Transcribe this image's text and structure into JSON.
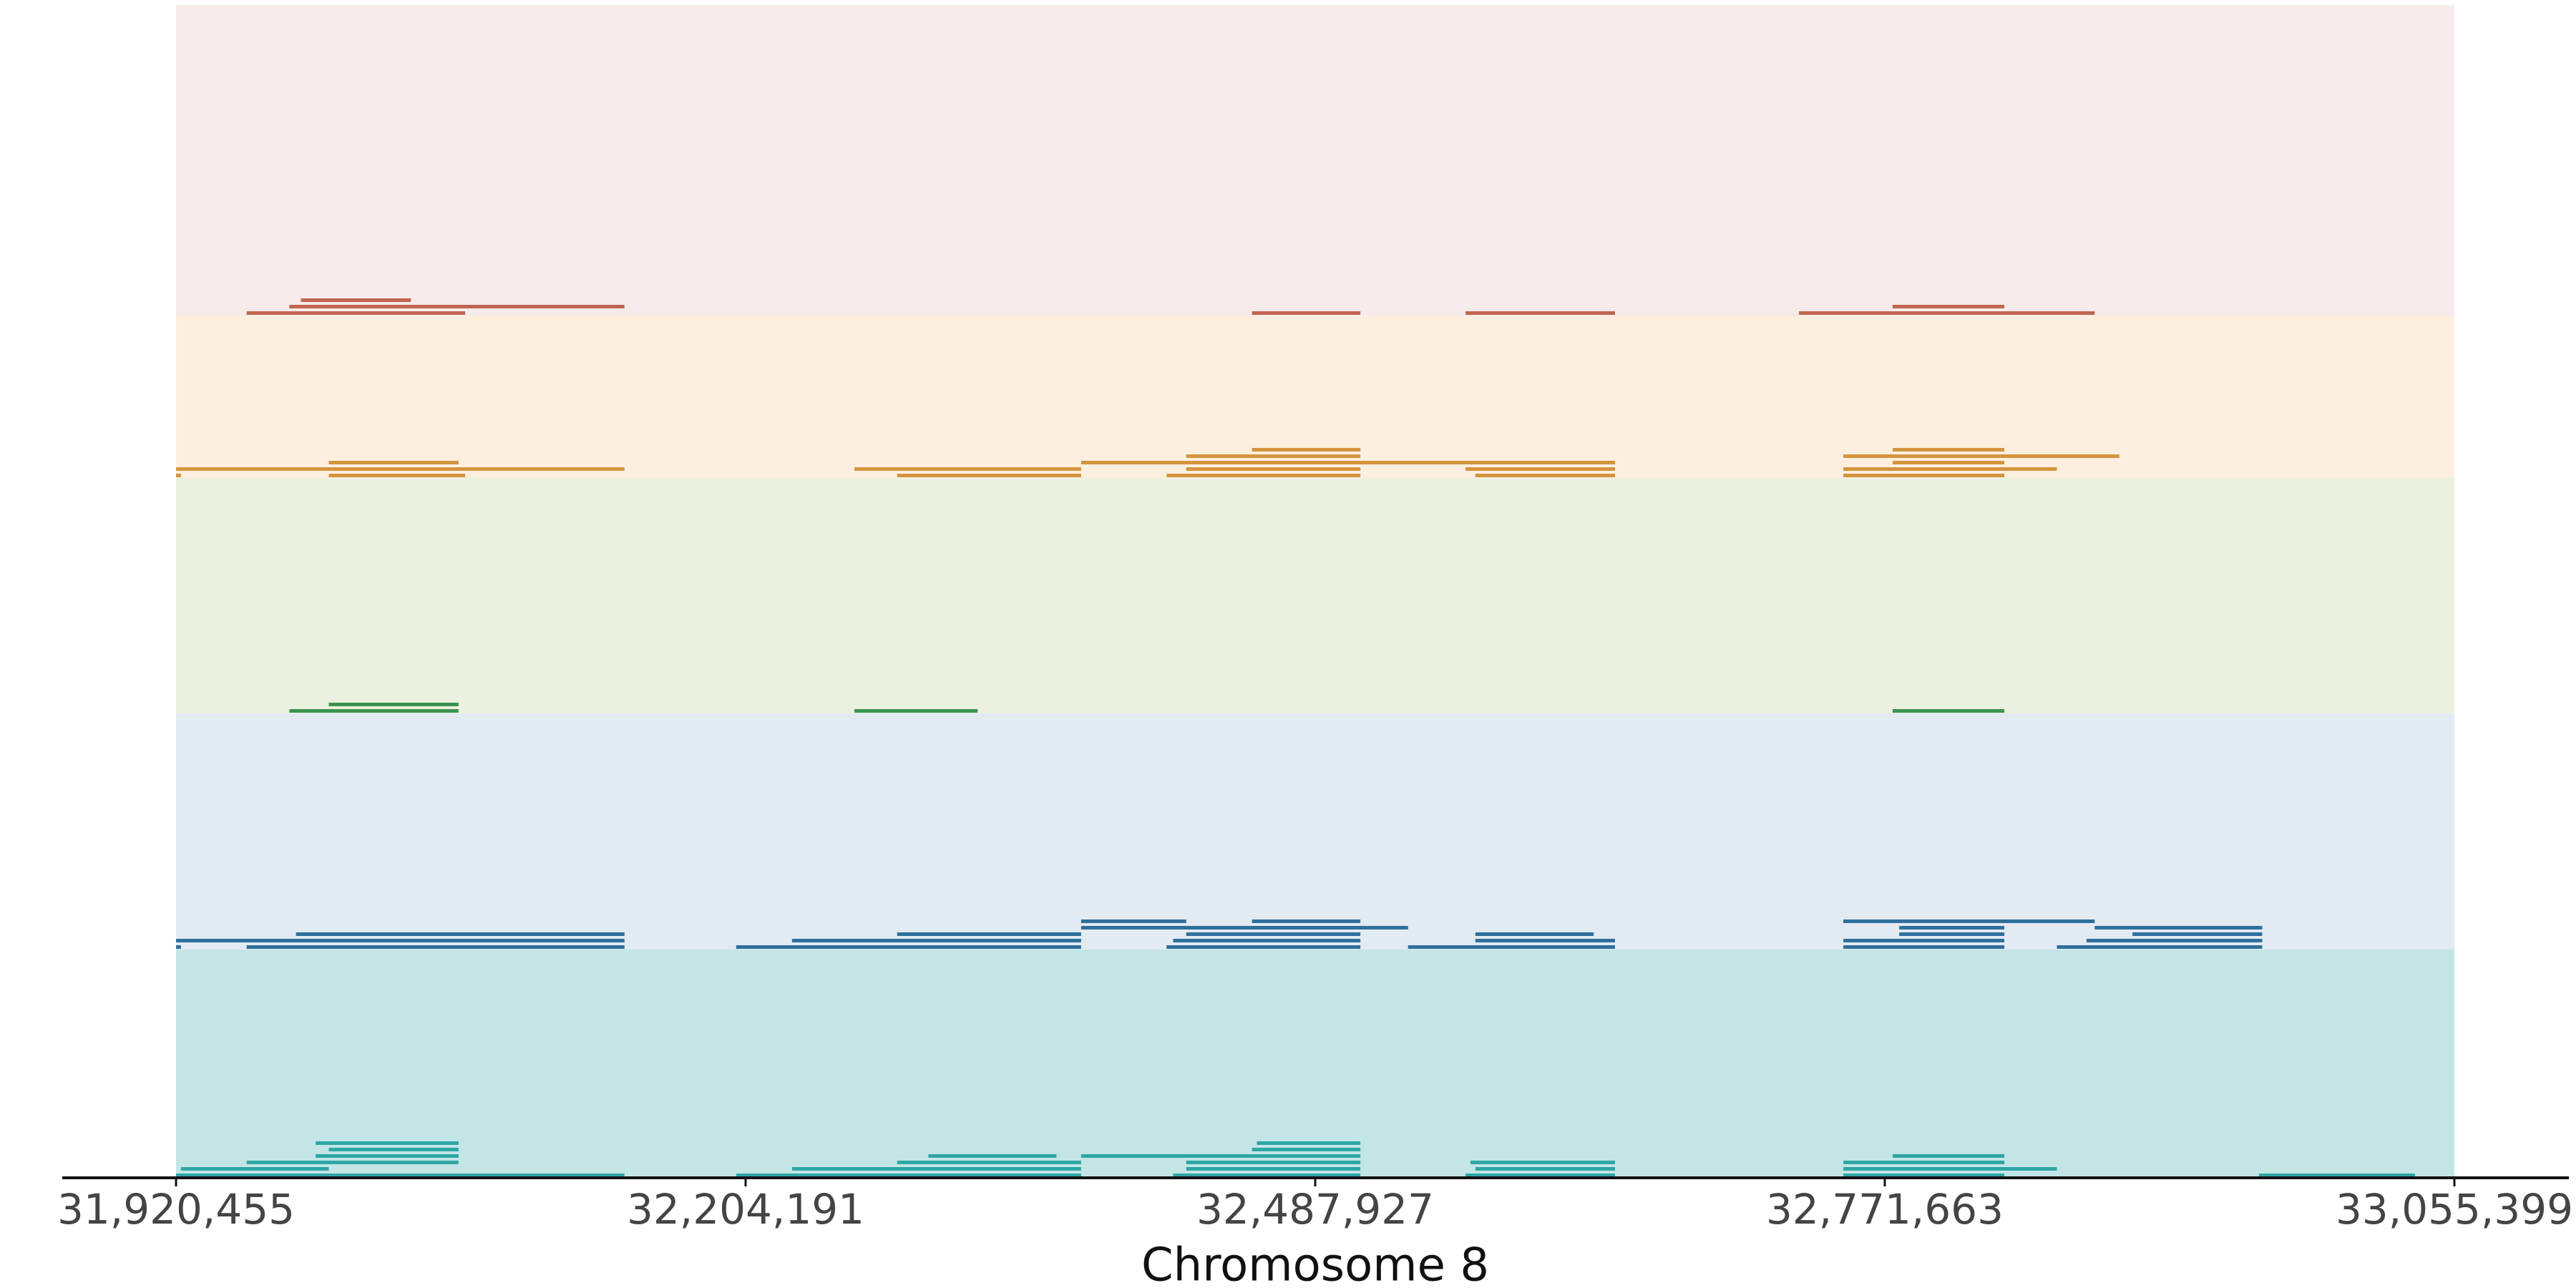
{
  "chart_data": {
    "type": "segments",
    "xlabel": "Chromosome 8",
    "xlim": [
      31920455,
      33055399
    ],
    "xticks": [
      {
        "value": 31920455,
        "label": "31,920,455"
      },
      {
        "value": 32204191,
        "label": "32,204,191"
      },
      {
        "value": 32487927,
        "label": "32,487,927"
      },
      {
        "value": 32771663,
        "label": "32,771,663"
      },
      {
        "value": 33055399,
        "label": "33,055,399"
      }
    ],
    "series": [
      {
        "color": "#c0654f",
        "band_color": "#f7eaea",
        "segments": [
          [
            31955640,
            32064480
          ],
          [
            31976920,
            32143850
          ],
          [
            31982650,
            32037470
          ],
          [
            32456440,
            32510450
          ],
          [
            32562820,
            32637280
          ],
          [
            32728930,
            32876230
          ],
          [
            32775580,
            32831220
          ]
        ]
      },
      {
        "color": "#d4943e",
        "band_color": "#fcefdf",
        "segments": [
          [
            31920455,
            31922910
          ],
          [
            31920455,
            32143850
          ],
          [
            31996560,
            32064480
          ],
          [
            31996560,
            32061200
          ],
          [
            32279680,
            32371330
          ],
          [
            32258400,
            32371330
          ],
          [
            32371330,
            32637280
          ],
          [
            32413880,
            32510450
          ],
          [
            32423700,
            32510450
          ],
          [
            32423700,
            32510450
          ],
          [
            32456440,
            32510450
          ],
          [
            32567730,
            32637280
          ],
          [
            32562820,
            32637280
          ],
          [
            32751030,
            32831220
          ],
          [
            32751030,
            32857410
          ],
          [
            32775580,
            32831220
          ],
          [
            32751030,
            32888500
          ],
          [
            32775580,
            32831220
          ]
        ]
      },
      {
        "color": "#3b934f",
        "band_color": "#ebf1df",
        "segments": [
          [
            31976920,
            32061200
          ],
          [
            31996560,
            32061200
          ],
          [
            32258400,
            32319770
          ],
          [
            32775580,
            32831220
          ]
        ]
      },
      {
        "color": "#2f6f9c",
        "band_color": "#e2eaf2",
        "segments": [
          [
            31920455,
            31922910
          ],
          [
            31920455,
            32143850
          ],
          [
            31955640,
            32143850
          ],
          [
            31980190,
            32143850
          ],
          [
            32199490,
            32371330
          ],
          [
            32227310,
            32371330
          ],
          [
            32279680,
            32371330
          ],
          [
            32371330,
            32534180
          ],
          [
            32413880,
            32510450
          ],
          [
            32417170,
            32510450
          ],
          [
            32423700,
            32510450
          ],
          [
            32371330,
            32423700
          ],
          [
            32456440,
            32510450
          ],
          [
            32534180,
            32637280
          ],
          [
            32567730,
            32637280
          ],
          [
            32567730,
            32626650
          ],
          [
            32751030,
            32831220
          ],
          [
            32751030,
            32831220
          ],
          [
            32778850,
            32831220
          ],
          [
            32778850,
            32831220
          ],
          [
            32751030,
            32876230
          ],
          [
            32857410,
            32959690
          ],
          [
            32872140,
            32959690
          ],
          [
            32895040,
            32959690
          ],
          [
            32876230,
            32959690
          ]
        ]
      },
      {
        "color": "#2ea6a4",
        "band_color": "#c4e5e6",
        "segments": [
          [
            31920455,
            32143850
          ],
          [
            31922910,
            31996560
          ],
          [
            31955640,
            32061200
          ],
          [
            31990010,
            32061200
          ],
          [
            31996560,
            32061200
          ],
          [
            31990010,
            32061200
          ],
          [
            32199490,
            32371330
          ],
          [
            32227310,
            32371330
          ],
          [
            32279680,
            32371330
          ],
          [
            32295230,
            32359050
          ],
          [
            32371330,
            32510450
          ],
          [
            32417170,
            32510450
          ],
          [
            32423700,
            32510450
          ],
          [
            32423700,
            32510450
          ],
          [
            32456440,
            32510450
          ],
          [
            32458900,
            32510450
          ],
          [
            32562820,
            32637280
          ],
          [
            32567730,
            32637280
          ],
          [
            32565270,
            32637280
          ],
          [
            32751030,
            32831220
          ],
          [
            32751030,
            32857410
          ],
          [
            32751030,
            32831220
          ],
          [
            32775580,
            32831220
          ],
          [
            32958060,
            33035790
          ]
        ]
      }
    ]
  }
}
